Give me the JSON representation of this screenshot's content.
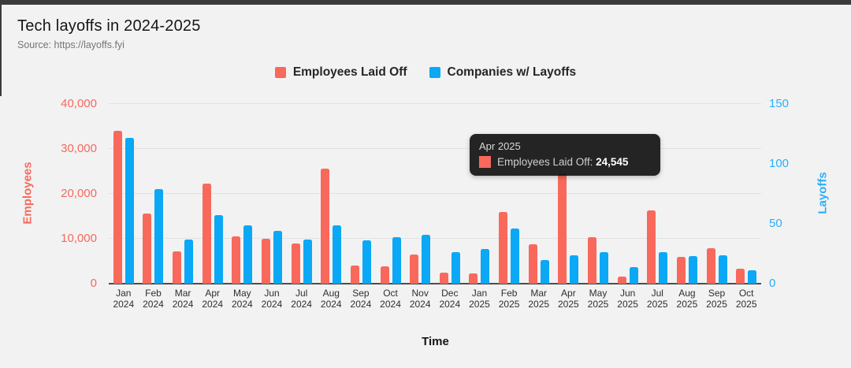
{
  "header": {
    "title": "Tech layoffs in 2024-2025",
    "source": "Source: https://layoffs.fyi"
  },
  "legend": [
    {
      "label": "Employees Laid Off",
      "color": "#F8695C"
    },
    {
      "label": "Companies w/ Layoffs",
      "color": "#0AA8F5"
    }
  ],
  "axes": {
    "left": {
      "title": "Employees",
      "color": "#F6695C",
      "max": 40000,
      "ticks": [
        {
          "v": 0,
          "label": "0"
        },
        {
          "v": 10000,
          "label": "10,000"
        },
        {
          "v": 20000,
          "label": "20,000"
        },
        {
          "v": 30000,
          "label": "30,000"
        },
        {
          "v": 40000,
          "label": "40,000"
        }
      ]
    },
    "right": {
      "title": "Layoffs",
      "color": "#2BAEF7",
      "max": 150,
      "ticks": [
        {
          "v": 0,
          "label": "0"
        },
        {
          "v": 50,
          "label": "50"
        },
        {
          "v": 100,
          "label": "100"
        },
        {
          "v": 150,
          "label": "150"
        }
      ]
    },
    "x": {
      "title": "Time"
    }
  },
  "tooltip": {
    "title": "Apr 2025",
    "series_label": "Employees Laid Off:",
    "value": "24,545",
    "marker_color": "#F8695C",
    "category_index": 15
  },
  "chart_data": {
    "type": "bar",
    "title": "Tech layoffs in 2024-2025",
    "xlabel": "Time",
    "ylabel_left": "Employees",
    "ylabel_right": "Layoffs",
    "ylim_left": [
      0,
      40000
    ],
    "ylim_right": [
      0,
      150
    ],
    "grid": "horizontal",
    "legend_position": "top-center",
    "categories": [
      "Jan 2024",
      "Feb 2024",
      "Mar 2024",
      "Apr 2024",
      "May 2024",
      "Jun 2024",
      "Jul 2024",
      "Aug 2024",
      "Sep 2024",
      "Oct 2024",
      "Nov 2024",
      "Dec 2024",
      "Jan 2025",
      "Feb 2025",
      "Mar 2025",
      "Apr 2025",
      "May 2025",
      "Jun 2025",
      "Jul 2025",
      "Aug 2025",
      "Sep 2025",
      "Oct 2025"
    ],
    "series": [
      {
        "name": "Employees Laid Off",
        "axis": "left",
        "color": "#F8695C",
        "values": [
          34100,
          15600,
          7200,
          22300,
          10600,
          10000,
          8900,
          25700,
          4000,
          3900,
          6500,
          2500,
          2300,
          16000,
          8700,
          24545,
          10400,
          1500,
          16300,
          6000,
          7900,
          3400
        ]
      },
      {
        "name": "Companies w/ Layoffs",
        "axis": "right",
        "color": "#0AA8F5",
        "values": [
          122,
          79,
          37,
          57,
          49,
          44,
          37,
          49,
          36,
          39,
          41,
          26,
          29,
          46,
          20,
          24,
          26,
          14,
          26,
          23,
          24,
          11
        ]
      }
    ]
  }
}
